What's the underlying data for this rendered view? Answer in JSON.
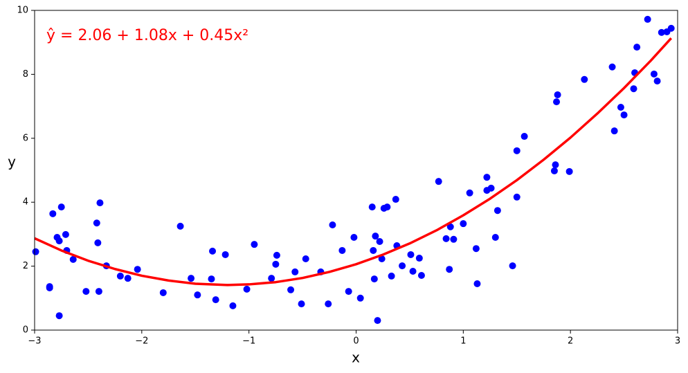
{
  "chart_data": {
    "type": "scatter",
    "annotation": "ŷ = 2.06 + 1.08x + 0.45x²",
    "annotation_color": "#ff0000",
    "xlabel": "x",
    "ylabel": "y",
    "xlim": [
      -3,
      3
    ],
    "ylim": [
      0,
      10
    ],
    "xticks": [
      {
        "value": -3,
        "label": "−3"
      },
      {
        "value": -2,
        "label": "−2"
      },
      {
        "value": -1,
        "label": "−1"
      },
      0,
      1,
      2,
      3
    ],
    "yticks": [
      0,
      2,
      4,
      6,
      8,
      10
    ],
    "series": [
      {
        "type": "scatter",
        "color": "#0000ff",
        "x": [
          -2.99,
          -2.83,
          -2.75,
          -2.86,
          -2.86,
          -2.79,
          -2.77,
          -2.71,
          -2.7,
          -2.77,
          -2.64,
          -2.52,
          -2.42,
          -2.39,
          -2.41,
          -2.4,
          -2.33,
          -2.2,
          -2.13,
          -2.04,
          -1.8,
          -1.64,
          -1.54,
          -1.48,
          -1.35,
          -1.34,
          -1.31,
          -1.22,
          -1.15,
          -1.02,
          -0.95,
          -0.79,
          -0.75,
          -0.74,
          -0.61,
          -0.57,
          -0.51,
          -0.47,
          -0.33,
          -0.26,
          -0.22,
          -0.13,
          -0.07,
          -0.02,
          0.04,
          0.15,
          0.16,
          0.17,
          0.18,
          0.22,
          0.2,
          0.24,
          0.26,
          0.29,
          0.33,
          0.37,
          0.38,
          0.43,
          0.51,
          0.53,
          0.59,
          0.61,
          0.77,
          0.84,
          0.87,
          0.88,
          0.91,
          1.0,
          1.06,
          1.12,
          1.13,
          1.22,
          1.22,
          1.26,
          1.3,
          1.32,
          1.46,
          1.5,
          1.5,
          1.57,
          1.85,
          1.86,
          1.87,
          1.88,
          1.99,
          2.13,
          2.39,
          2.41,
          2.47,
          2.5,
          2.59,
          2.6,
          2.62,
          2.72,
          2.78,
          2.81,
          2.85,
          2.9,
          2.94
        ],
        "y": [
          2.45,
          3.64,
          3.85,
          1.32,
          1.36,
          2.9,
          2.79,
          2.99,
          2.49,
          0.45,
          2.21,
          1.21,
          3.35,
          3.98,
          2.73,
          1.21,
          2.01,
          1.69,
          1.62,
          1.9,
          1.17,
          3.25,
          1.62,
          1.1,
          1.6,
          2.47,
          0.95,
          2.36,
          0.76,
          1.28,
          2.68,
          1.62,
          2.06,
          2.34,
          1.26,
          1.82,
          0.82,
          2.23,
          1.82,
          0.82,
          3.29,
          2.49,
          1.21,
          2.9,
          1.0,
          3.85,
          2.49,
          1.6,
          2.94,
          2.77,
          0.3,
          2.23,
          3.81,
          3.85,
          1.69,
          4.09,
          2.64,
          2.01,
          2.36,
          1.84,
          2.25,
          1.71,
          4.65,
          2.86,
          1.9,
          3.23,
          2.84,
          3.33,
          4.29,
          2.55,
          1.45,
          4.37,
          4.78,
          4.44,
          2.9,
          3.74,
          2.01,
          5.61,
          4.16,
          6.06,
          4.98,
          5.17,
          7.14,
          7.36,
          4.96,
          7.84,
          8.23,
          6.23,
          6.97,
          6.73,
          7.55,
          8.05,
          8.85,
          9.72,
          8.01,
          7.79,
          9.31,
          9.33,
          9.44
        ]
      },
      {
        "type": "line",
        "color": "#ff0000",
        "x": [
          -3,
          -2.75,
          -2.5,
          -2.25,
          -2,
          -1.75,
          -1.5,
          -1.2,
          -1,
          -0.75,
          -0.5,
          -0.25,
          0,
          0.25,
          0.5,
          0.75,
          1,
          1.25,
          1.5,
          1.75,
          2,
          2.25,
          2.5,
          2.75,
          2.94
        ],
        "y": [
          2.87,
          2.49,
          2.17,
          1.91,
          1.7,
          1.55,
          1.45,
          1.41,
          1.43,
          1.5,
          1.63,
          1.82,
          2.06,
          2.36,
          2.71,
          3.12,
          3.59,
          4.11,
          4.69,
          5.33,
          6.02,
          6.77,
          7.57,
          8.43,
          9.13
        ]
      }
    ]
  }
}
